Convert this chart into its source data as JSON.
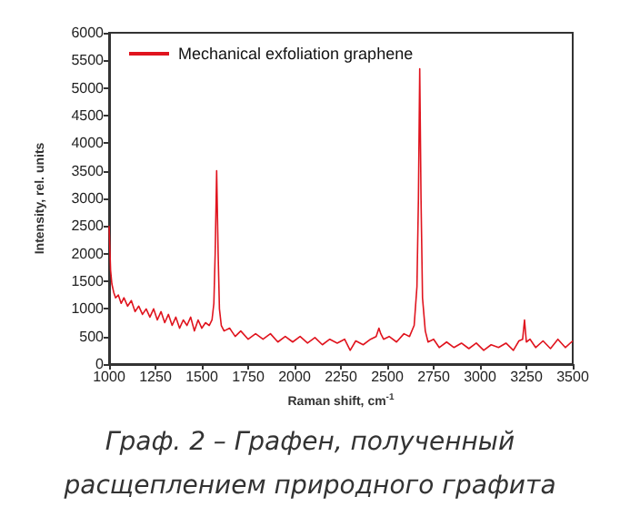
{
  "chart_data": {
    "type": "line",
    "xlabel": "Raman shift, cm$^{-1}$",
    "ylabel": "Intensity, rel. units",
    "annotations": [
      "Граф. 2 – Графен, полученный",
      "расщеплением природного графита"
    ],
    "xlim": [
      1000,
      3500
    ],
    "xticks": [
      1000,
      1250,
      1500,
      1750,
      2000,
      2250,
      2500,
      2750,
      3000,
      3250,
      3500
    ],
    "ylim": [
      0,
      6000
    ],
    "yticks": [
      0,
      500,
      1000,
      1500,
      2000,
      2500,
      3000,
      3500,
      4000,
      4500,
      5000,
      5500,
      6000
    ],
    "grid": false,
    "legend": "top left",
    "marker": "none",
    "line_style": "solid",
    "series": [
      {
        "name": "Mechanical exfoliation graphene",
        "color": "#e0141e",
        "x": [
          1000,
          1004,
          1008,
          1015,
          1025,
          1035,
          1050,
          1065,
          1080,
          1100,
          1120,
          1140,
          1160,
          1180,
          1200,
          1220,
          1240,
          1260,
          1280,
          1300,
          1320,
          1340,
          1360,
          1380,
          1400,
          1420,
          1440,
          1460,
          1480,
          1500,
          1520,
          1540,
          1555,
          1565,
          1572,
          1580,
          1588,
          1595,
          1605,
          1620,
          1650,
          1680,
          1710,
          1750,
          1790,
          1830,
          1870,
          1910,
          1950,
          1990,
          2030,
          2070,
          2110,
          2150,
          2190,
          2230,
          2270,
          2300,
          2330,
          2370,
          2410,
          2440,
          2455,
          2465,
          2480,
          2510,
          2550,
          2590,
          2620,
          2645,
          2660,
          2668,
          2675,
          2682,
          2690,
          2705,
          2720,
          2750,
          2780,
          2820,
          2860,
          2900,
          2940,
          2980,
          3020,
          3060,
          3100,
          3140,
          3180,
          3210,
          3230,
          3240,
          3250,
          3270,
          3300,
          3340,
          3380,
          3420,
          3460,
          3500
        ],
        "values": [
          2500,
          2100,
          1700,
          1450,
          1300,
          1200,
          1250,
          1100,
          1200,
          1050,
          1150,
          950,
          1050,
          900,
          1000,
          850,
          1000,
          800,
          950,
          750,
          900,
          700,
          850,
          650,
          800,
          700,
          850,
          600,
          800,
          650,
          750,
          700,
          800,
          1100,
          2000,
          3500,
          2000,
          1000,
          700,
          600,
          650,
          500,
          600,
          450,
          550,
          450,
          550,
          400,
          500,
          400,
          500,
          380,
          480,
          350,
          450,
          380,
          450,
          250,
          420,
          350,
          450,
          500,
          650,
          550,
          450,
          500,
          400,
          550,
          500,
          700,
          1400,
          3000,
          5350,
          3000,
          1200,
          600,
          400,
          450,
          300,
          400,
          300,
          380,
          280,
          380,
          250,
          350,
          300,
          380,
          250,
          420,
          450,
          800,
          400,
          450,
          300,
          420,
          280,
          450,
          300,
          420
        ]
      }
    ]
  }
}
